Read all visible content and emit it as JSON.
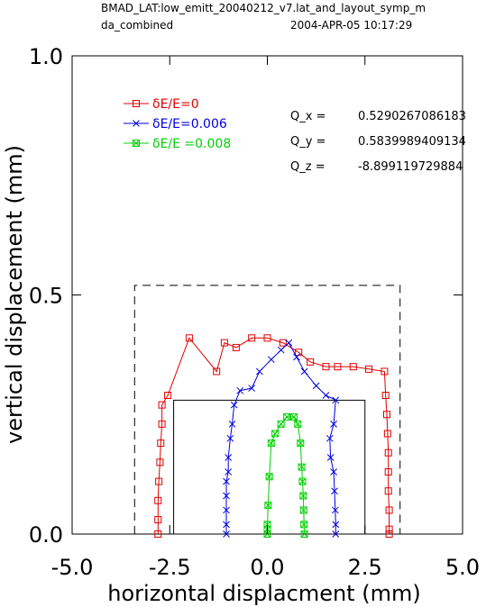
{
  "header": {
    "line1": "BMAD_LAT:low_emitt_20040212_v7.lat_and_layout_symp_m",
    "line2_left": "da_combined",
    "line2_right": "2004-APR-05  10:17:29"
  },
  "chart_data": {
    "type": "line",
    "xlabel": "horizontal displacment (mm)",
    "ylabel": "vertical displacement (mm)",
    "xlim": [
      -5.0,
      5.0
    ],
    "ylim": [
      0.0,
      1.0
    ],
    "x_ticks": [
      "-5.0",
      "-2.5",
      "0.0",
      "2.5",
      "5.0"
    ],
    "x_tick_values": [
      -5.0,
      -2.5,
      0.0,
      2.5,
      5.0
    ],
    "y_ticks": [
      "0.0",
      "0.5",
      "1.0"
    ],
    "y_tick_values": [
      0.0,
      0.5,
      1.0
    ],
    "grid": false,
    "legend_position": "top-left",
    "tune_labels": [
      {
        "name": "Q_x  =",
        "value": "0.5290267086183"
      },
      {
        "name": "Q_y  =",
        "value": "0.5839989409134"
      },
      {
        "name": "Q_z  =",
        "value": "-8.899119729884"
      }
    ],
    "series": [
      {
        "name": "δE/E=0",
        "color": "#e00000",
        "marker": "square",
        "points": [
          [
            -2.8,
            0.0
          ],
          [
            -2.8,
            0.03
          ],
          [
            -2.8,
            0.07
          ],
          [
            -2.78,
            0.11
          ],
          [
            -2.75,
            0.15
          ],
          [
            -2.73,
            0.19
          ],
          [
            -2.7,
            0.23
          ],
          [
            -2.7,
            0.27
          ],
          [
            -2.55,
            0.29
          ],
          [
            -2.0,
            0.41
          ],
          [
            -1.3,
            0.34
          ],
          [
            -1.1,
            0.4
          ],
          [
            -0.8,
            0.39
          ],
          [
            -0.4,
            0.41
          ],
          [
            0.0,
            0.41
          ],
          [
            0.4,
            0.4
          ],
          [
            0.8,
            0.38
          ],
          [
            1.1,
            0.36
          ],
          [
            1.5,
            0.35
          ],
          [
            1.8,
            0.35
          ],
          [
            2.2,
            0.35
          ],
          [
            2.6,
            0.345
          ],
          [
            3.0,
            0.34
          ],
          [
            3.03,
            0.29
          ],
          [
            3.06,
            0.25
          ],
          [
            3.08,
            0.21
          ],
          [
            3.1,
            0.17
          ],
          [
            3.1,
            0.13
          ],
          [
            3.1,
            0.09
          ],
          [
            3.12,
            0.05
          ],
          [
            3.12,
            0.01
          ],
          [
            3.12,
            0.0
          ]
        ]
      },
      {
        "name": "δE/E=0.006",
        "color": "#0000e0",
        "marker": "x",
        "points": [
          [
            -1.05,
            0.0
          ],
          [
            -1.05,
            0.02
          ],
          [
            -1.05,
            0.05
          ],
          [
            -1.05,
            0.08
          ],
          [
            -1.05,
            0.11
          ],
          [
            -1.0,
            0.13
          ],
          [
            -1.0,
            0.16
          ],
          [
            -0.95,
            0.2
          ],
          [
            -0.9,
            0.23
          ],
          [
            -0.85,
            0.27
          ],
          [
            -0.7,
            0.3
          ],
          [
            -0.4,
            0.305
          ],
          [
            -0.2,
            0.34
          ],
          [
            0.1,
            0.365
          ],
          [
            0.35,
            0.385
          ],
          [
            0.55,
            0.4
          ],
          [
            0.75,
            0.37
          ],
          [
            0.95,
            0.34
          ],
          [
            1.25,
            0.31
          ],
          [
            1.5,
            0.29
          ],
          [
            1.75,
            0.28
          ],
          [
            1.7,
            0.23
          ],
          [
            1.6,
            0.2
          ],
          [
            1.62,
            0.16
          ],
          [
            1.7,
            0.13
          ],
          [
            1.72,
            0.09
          ],
          [
            1.74,
            0.05
          ],
          [
            1.75,
            0.02
          ],
          [
            1.75,
            0.0
          ]
        ]
      },
      {
        "name": "δE/E =0.008",
        "color": "#00d000",
        "marker": "boxed-x",
        "points": [
          [
            0.0,
            0.0
          ],
          [
            0.0,
            0.01
          ],
          [
            0.0,
            0.02
          ],
          [
            0.02,
            0.06
          ],
          [
            0.05,
            0.12
          ],
          [
            0.1,
            0.19
          ],
          [
            0.2,
            0.21
          ],
          [
            0.35,
            0.23
          ],
          [
            0.5,
            0.245
          ],
          [
            0.68,
            0.245
          ],
          [
            0.78,
            0.23
          ],
          [
            0.85,
            0.19
          ],
          [
            0.88,
            0.14
          ],
          [
            0.9,
            0.11
          ],
          [
            0.92,
            0.08
          ],
          [
            0.93,
            0.05
          ],
          [
            0.94,
            0.02
          ],
          [
            0.95,
            0.0
          ]
        ]
      }
    ],
    "boundaries": [
      {
        "style": "dashed",
        "rect": [
          -3.4,
          3.4,
          0.0,
          0.52
        ]
      },
      {
        "style": "solid",
        "rect": [
          -2.4,
          2.5,
          0.0,
          0.28
        ]
      }
    ]
  }
}
